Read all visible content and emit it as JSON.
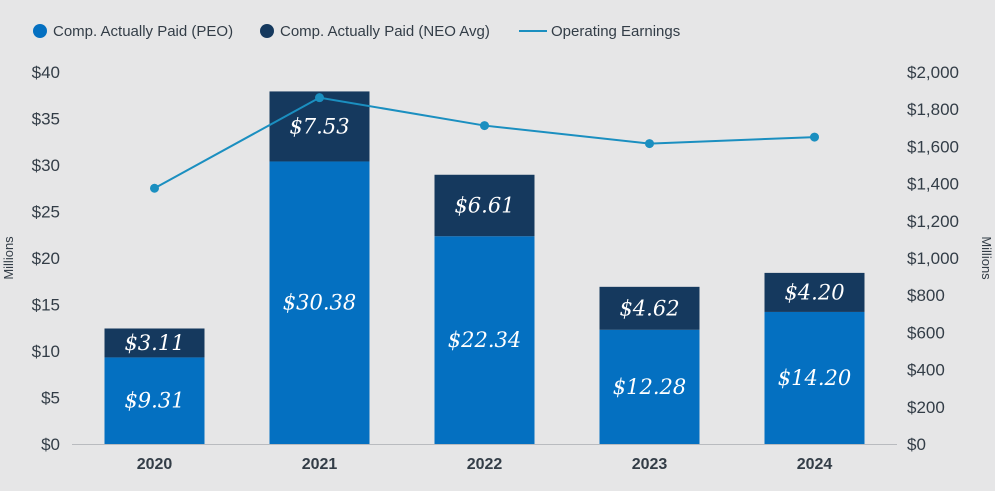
{
  "chart_data": {
    "type": "bar",
    "stacked": true,
    "categories": [
      "2020",
      "2021",
      "2022",
      "2023",
      "2024"
    ],
    "series": [
      {
        "name": "Comp. Actually Paid (PEO)",
        "color": "#0470c1",
        "axis": "left",
        "values": [
          9.31,
          30.38,
          22.34,
          12.28,
          14.2
        ],
        "labels": [
          "$9.31",
          "$30.38",
          "$22.34",
          "$12.28",
          "$14.20"
        ]
      },
      {
        "name": "Comp. Actually Paid (NEO Avg)",
        "color": "#15395e",
        "axis": "left",
        "values": [
          3.11,
          7.53,
          6.61,
          4.62,
          4.2
        ],
        "labels": [
          "$3.11",
          "$7.53",
          "$6.61",
          "$4.62",
          "$4.20"
        ]
      }
    ],
    "line_series": {
      "name": "Operating Earnings",
      "color": "#1b8fc0",
      "axis": "right",
      "values": [
        1375,
        1862,
        1712,
        1615,
        1650
      ]
    },
    "left_axis": {
      "title": "Millions",
      "ylim": [
        0,
        40
      ],
      "ticks": [
        "$0",
        "$5",
        "$10",
        "$15",
        "$20",
        "$25",
        "$30",
        "$35",
        "$40"
      ]
    },
    "right_axis": {
      "title": "Millions",
      "ylim": [
        0,
        2000
      ],
      "ticks": [
        "$0",
        "$200",
        "$400",
        "$600",
        "$800",
        "$1,000",
        "$1,200",
        "$1,400",
        "$1,600",
        "$1,800",
        "$2,000"
      ]
    },
    "legend": {
      "placement": "top-left"
    },
    "grid": false
  }
}
